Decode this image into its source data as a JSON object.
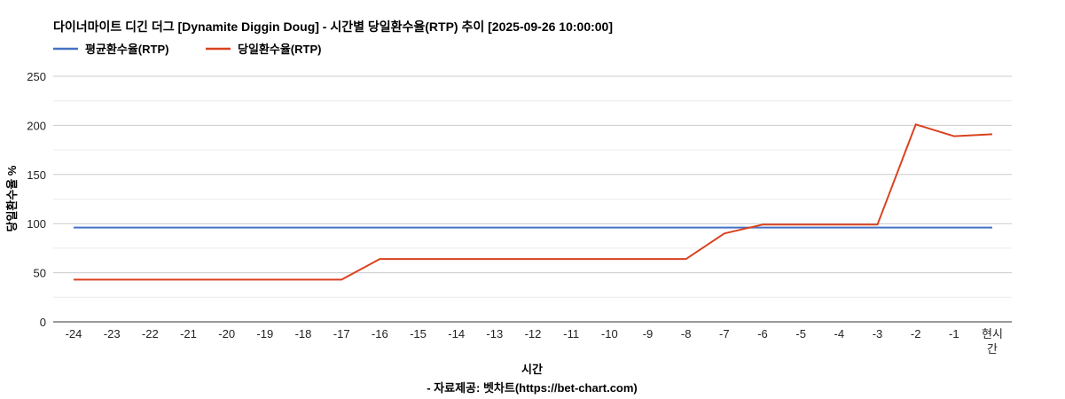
{
  "chart_data": {
    "type": "line",
    "title": "다이너마이트 디긴 더그 [Dynamite Diggin Doug] - 시간별 당일환수율(RTP) 추이 [2025-09-26 10:00:00]",
    "xlabel": "시간",
    "ylabel": "당일환수율 %",
    "source": "- 자료제공: 벳차트(https://bet-chart.com)",
    "categories": [
      "-24",
      "-23",
      "-22",
      "-21",
      "-20",
      "-19",
      "-18",
      "-17",
      "-16",
      "-15",
      "-14",
      "-13",
      "-12",
      "-11",
      "-10",
      "-9",
      "-8",
      "-7",
      "-6",
      "-5",
      "-4",
      "-3",
      "-2",
      "-1",
      "현시간"
    ],
    "ylim": [
      0,
      250
    ],
    "yticks": [
      0,
      50,
      100,
      150,
      200,
      250
    ],
    "grid": true,
    "legend_position": "top-left",
    "series": [
      {
        "name": "평균환수율(RTP)",
        "color": "#4472c4",
        "values": [
          96,
          96,
          96,
          96,
          96,
          96,
          96,
          96,
          96,
          96,
          96,
          96,
          96,
          96,
          96,
          96,
          96,
          96,
          96,
          96,
          96,
          96,
          96,
          96,
          96
        ]
      },
      {
        "name": "당일환수율(RTP)",
        "color": "#d9421f",
        "values": [
          43,
          43,
          43,
          43,
          43,
          43,
          43,
          43,
          64,
          64,
          64,
          64,
          64,
          64,
          64,
          64,
          64,
          90,
          99,
          99,
          99,
          99,
          201,
          189,
          191
        ]
      }
    ]
  }
}
